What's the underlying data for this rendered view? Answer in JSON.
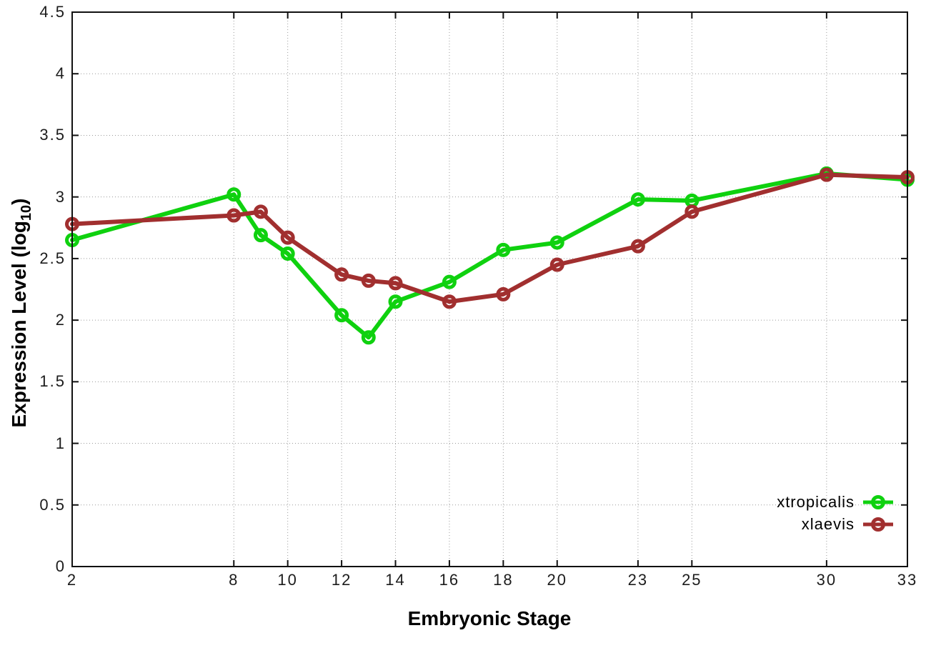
{
  "chart_data": {
    "type": "line",
    "title": "",
    "xlabel": "Embryonic Stage",
    "ylabel": "Expression Level (log10)",
    "ylabel_parts": {
      "prefix": "Expression Level (log",
      "sub": "10",
      "suffix": ")"
    },
    "x": [
      2,
      8,
      9,
      10,
      12,
      13,
      14,
      16,
      18,
      20,
      23,
      25,
      30,
      33
    ],
    "xlim": [
      2,
      33
    ],
    "ylim": [
      0,
      4.5
    ],
    "xtick_values": [
      2,
      8,
      10,
      12,
      14,
      16,
      18,
      20,
      23,
      25,
      30,
      33
    ],
    "xtick_labels": [
      "2",
      "8",
      "10",
      "12",
      "14",
      "16",
      "18",
      "20",
      "23",
      "25",
      "30",
      "33"
    ],
    "ytick_values": [
      0,
      0.5,
      1,
      1.5,
      2,
      2.5,
      3,
      3.5,
      4,
      4.5
    ],
    "ytick_labels": [
      "0",
      "0.5",
      "1",
      "1.5",
      "2",
      "2.5",
      "3",
      "3.5",
      "4",
      "4.5"
    ],
    "grid": true,
    "legend_position": "bottom-right",
    "series": [
      {
        "name": "xtropicalis",
        "color": "#0fd10f",
        "values": [
          2.65,
          3.02,
          2.69,
          2.54,
          2.04,
          1.86,
          2.15,
          2.31,
          2.57,
          2.63,
          2.98,
          2.97,
          3.19,
          3.14
        ]
      },
      {
        "name": "xlaevis",
        "color": "#a12f2f",
        "values": [
          2.78,
          2.85,
          2.88,
          2.67,
          2.37,
          2.32,
          2.3,
          2.15,
          2.21,
          2.45,
          2.6,
          2.88,
          3.18,
          3.16
        ]
      }
    ],
    "style": {
      "border_color": "#111111",
      "grid_color": "#9a9a9a",
      "line_width": 6,
      "marker_radius": 7.5,
      "marker_stroke": 5
    }
  }
}
